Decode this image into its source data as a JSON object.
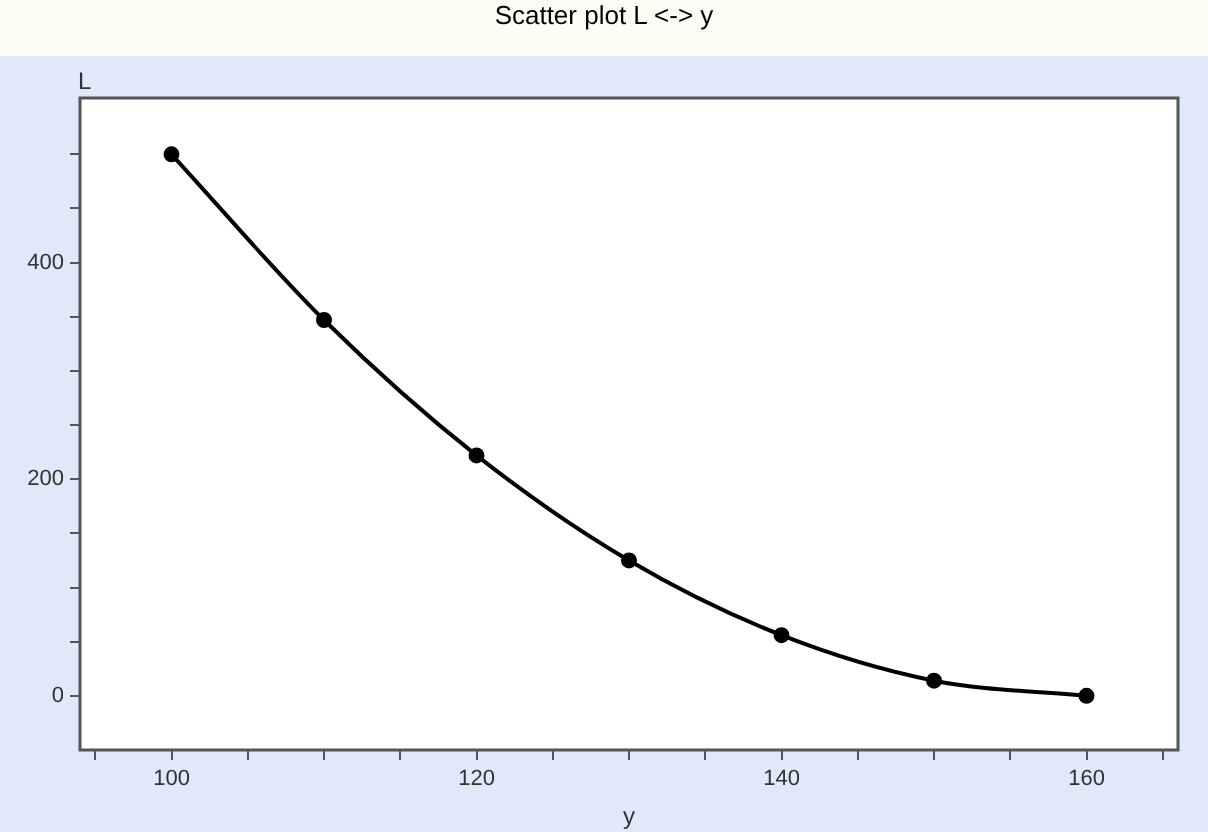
{
  "chart_data": {
    "type": "line",
    "title": "Scatter plot L <-> y",
    "xlabel": "y",
    "ylabel": "L",
    "x": [
      100,
      110,
      120,
      130,
      140,
      150,
      160
    ],
    "series": [
      {
        "color": "#000000",
        "values": [
          500,
          347,
          222,
          125,
          56,
          14,
          0
        ]
      }
    ],
    "xlim": [
      94,
      166
    ],
    "ylim": [
      -50,
      552
    ],
    "xticks": [
      {
        "value": 95,
        "label": null
      },
      100,
      {
        "value": 105,
        "label": null
      },
      {
        "value": 110,
        "label": null
      },
      {
        "value": 115,
        "label": null
      },
      120,
      {
        "value": 125,
        "label": null
      },
      {
        "value": 130,
        "label": null
      },
      {
        "value": 135,
        "label": null
      },
      140,
      {
        "value": 145,
        "label": null
      },
      {
        "value": 150,
        "label": null
      },
      {
        "value": 155,
        "label": null
      },
      160,
      {
        "value": 165,
        "label": null
      }
    ],
    "yticks": [
      0,
      {
        "value": 50,
        "label": null
      },
      {
        "value": 100,
        "label": null
      },
      {
        "value": 150,
        "label": null
      },
      200,
      {
        "value": 250,
        "label": null
      },
      {
        "value": 300,
        "label": null
      },
      {
        "value": 350,
        "label": null
      },
      400,
      {
        "value": 450,
        "label": null
      },
      {
        "value": 500,
        "label": null
      }
    ],
    "marker": "circle",
    "line_style": "solid"
  }
}
